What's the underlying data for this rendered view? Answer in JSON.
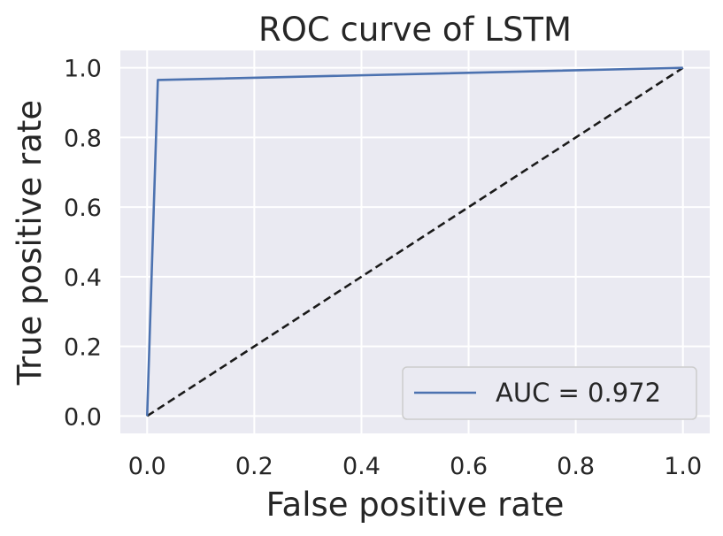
{
  "chart_data": {
    "type": "line",
    "title": "ROC curve of LSTM",
    "xlabel": "False positive rate",
    "ylabel": "True positive rate",
    "xlim": [
      -0.05,
      1.05
    ],
    "ylim": [
      -0.05,
      1.05
    ],
    "xticks": [
      0.0,
      0.2,
      0.4,
      0.6,
      0.8,
      1.0
    ],
    "xtick_labels": [
      "0.0",
      "0.2",
      "0.4",
      "0.6",
      "0.8",
      "1.0"
    ],
    "yticks": [
      0.0,
      0.2,
      0.4,
      0.6,
      0.8,
      1.0
    ],
    "ytick_labels": [
      "0.0",
      "0.2",
      "0.4",
      "0.6",
      "0.8",
      "1.0"
    ],
    "grid": true,
    "legend_position": "lower-right",
    "series": [
      {
        "name": "AUC = 0.972",
        "color": "#4c72b0",
        "style": "solid",
        "x": [
          0.0,
          0.02,
          1.0
        ],
        "y": [
          0.0,
          0.965,
          1.0
        ]
      },
      {
        "color": "#1a1a1a",
        "style": "dashed",
        "x": [
          0.0,
          1.0
        ],
        "y": [
          0.0,
          1.0
        ]
      }
    ],
    "colors": {
      "plot_bg": "#eaeaf2",
      "grid": "#ffffff",
      "text": "#262626"
    }
  }
}
